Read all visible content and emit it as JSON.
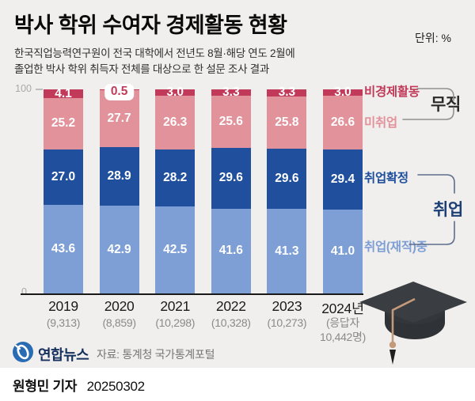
{
  "header": {
    "title": "박사 학위 수여자 경제활동 현황",
    "unit": "단위: %",
    "subtitle_line1": "한국직업능력연구원이 전국 대학에서 전년도 8월·해당 연도 2월에",
    "subtitle_line2": "졸업한 박사 학위 취득자 전체를 대상으로 한 설문 조사 결과"
  },
  "chart_data": {
    "type": "bar",
    "stacked": true,
    "unit": "%",
    "ylim": [
      0,
      100
    ],
    "y_axis": {
      "max_label": "100",
      "min_label": "0"
    },
    "categories": [
      "2019",
      "2020",
      "2021",
      "2022",
      "2023",
      "2024년"
    ],
    "category_notes": [
      [
        "(9,313)"
      ],
      [
        "(8,859)"
      ],
      [
        "(10,298)"
      ],
      [
        "(10,328)"
      ],
      [
        "(10,273)"
      ],
      [
        "(응답자",
        "10,442명)"
      ]
    ],
    "series": [
      {
        "name": "취업(재직)중",
        "color": "#7e9fd6",
        "values": [
          43.6,
          42.9,
          42.5,
          41.6,
          41.3,
          41.0
        ]
      },
      {
        "name": "취업확정",
        "color": "#20509d",
        "values": [
          27.0,
          28.9,
          28.2,
          29.6,
          29.6,
          29.4
        ]
      },
      {
        "name": "미취업",
        "color": "#e2929a",
        "values": [
          25.2,
          27.7,
          26.3,
          25.6,
          25.8,
          26.6
        ]
      },
      {
        "name": "비경제활동",
        "color": "#c13a59",
        "values": [
          4.1,
          0.5,
          3.0,
          3.3,
          3.3,
          3.0
        ]
      }
    ],
    "callout": {
      "series": "비경제활동",
      "category": "2020",
      "value": "0.5"
    },
    "legend_position": "right",
    "grid": false
  },
  "legend": {
    "non_economic": "비경제활동",
    "unemployed_group": "무직",
    "not_employed": "미취업",
    "employment_confirmed": "취업확정",
    "employed_group": "취업",
    "employed_current": "취업(재직)중"
  },
  "footer": {
    "logo_text": "연합뉴스",
    "source": "자료: 통계청 국가통계포털",
    "byline_name": "원형민 기자",
    "byline_date": "20250302"
  }
}
